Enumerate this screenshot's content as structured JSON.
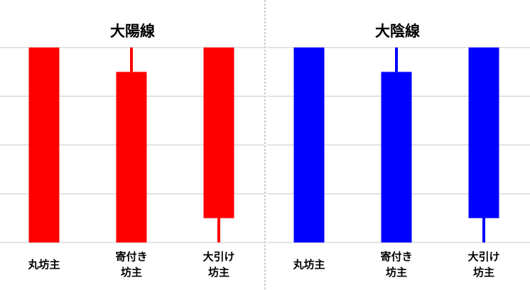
{
  "chart_data": [
    {
      "type": "candlestick",
      "title": "大陽線",
      "categories": [
        "丸坊主",
        "寄付き\n坊主",
        "大引け\n坊主"
      ],
      "open": [
        0,
        0,
        0.5
      ],
      "high": [
        4,
        4,
        4
      ],
      "low": [
        0,
        0,
        0
      ],
      "close": [
        4,
        3.5,
        4
      ],
      "color": "#ff0000",
      "ylim": [
        0,
        4
      ],
      "yticks": [
        0,
        1,
        2,
        3,
        4
      ],
      "grid": true
    },
    {
      "type": "candlestick",
      "title": "大陰線",
      "categories": [
        "丸坊主",
        "寄付き\n坊主",
        "大引け\n坊主"
      ],
      "open": [
        4,
        3.5,
        4
      ],
      "high": [
        4,
        4,
        4
      ],
      "low": [
        0,
        0,
        0
      ],
      "close": [
        0,
        0,
        0.5
      ],
      "color": "#0000ff",
      "ylim": [
        0,
        4
      ],
      "yticks": [
        0,
        1,
        2,
        3,
        4
      ],
      "grid": true
    }
  ]
}
